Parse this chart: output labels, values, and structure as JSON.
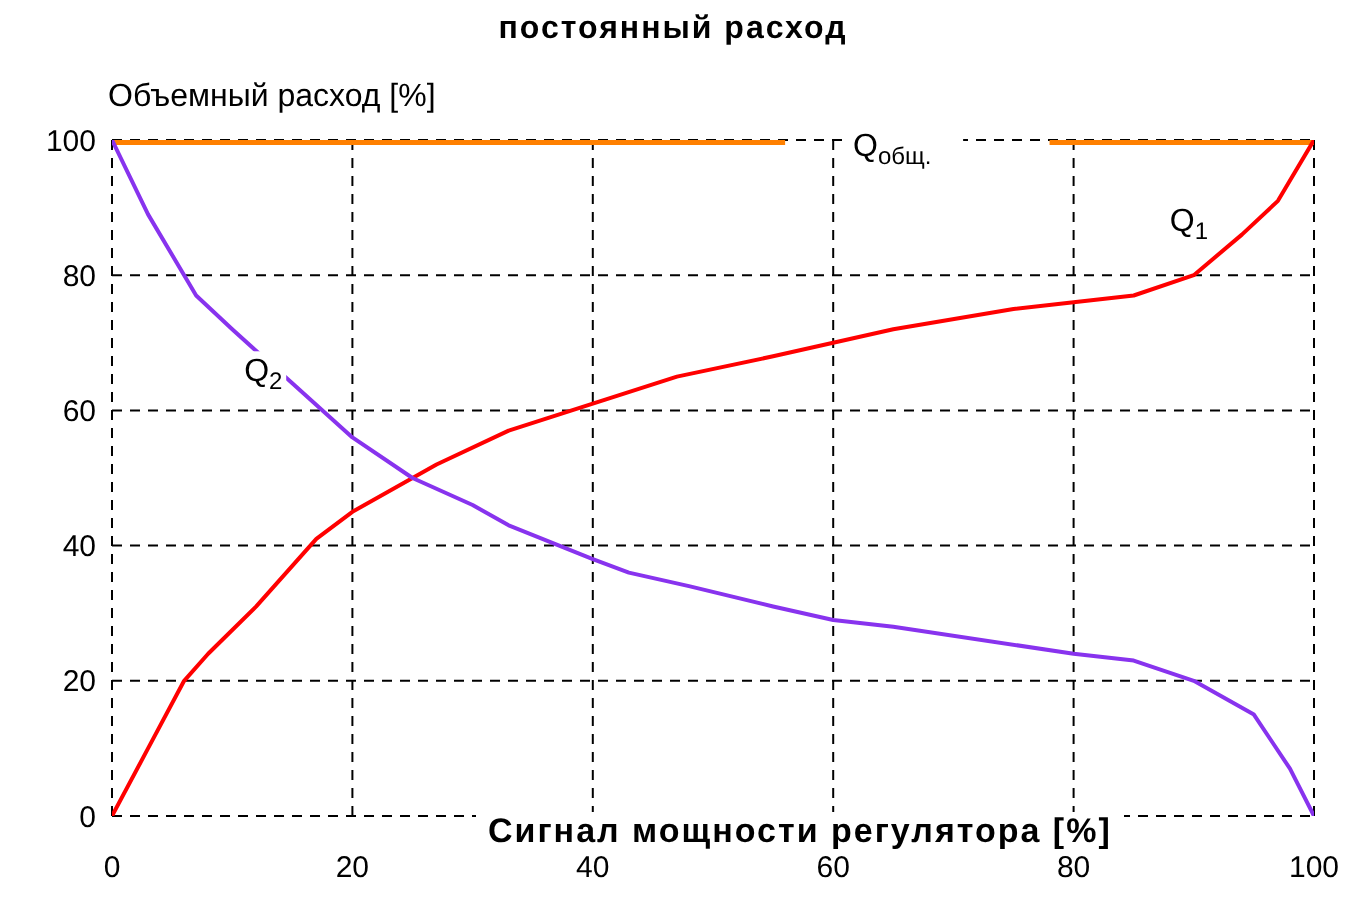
{
  "chart_data": {
    "type": "line",
    "title": "постоянный расход",
    "ylabel": "Объемный расход [%]",
    "xlabel": "Сигнал мощности регулятора [%]",
    "xlim": [
      0,
      100
    ],
    "ylim": [
      0,
      100
    ],
    "xticks": [
      0,
      20,
      40,
      60,
      80,
      100
    ],
    "yticks": [
      0,
      20,
      40,
      60,
      80,
      100
    ],
    "grid": true,
    "legend": false,
    "marker": "none",
    "line_style": "solid",
    "series": [
      {
        "name": "Q$_{общ.}$",
        "color": "#ff8000",
        "x": [
          0,
          56,
          67,
          78,
          100
        ],
        "values": [
          100,
          100,
          null,
          100,
          100
        ]
      },
      {
        "name": "Q$_{1}$",
        "color": "#ff0000",
        "x": [
          0,
          3,
          6,
          8,
          12,
          17,
          20,
          27,
          33,
          40,
          47,
          55,
          60,
          65,
          75,
          80,
          85,
          90,
          94,
          97,
          100
        ],
        "values": [
          0,
          10,
          20,
          24,
          31,
          41,
          45,
          52,
          57,
          61,
          65,
          68,
          70,
          72,
          75,
          76,
          77,
          80,
          86,
          91,
          100
        ]
      },
      {
        "name": "Q$_{2}$",
        "color": "#8833ee",
        "x": [
          0,
          3,
          7,
          10,
          15,
          20,
          25,
          30,
          33,
          40,
          43,
          48,
          55,
          60,
          65,
          80,
          85,
          90,
          93,
          95,
          98,
          100
        ],
        "values": [
          100,
          89,
          77,
          72,
          64,
          56,
          50,
          46,
          43,
          38,
          36,
          34,
          31,
          29,
          28,
          24,
          23,
          20,
          17,
          15,
          7,
          0
        ]
      }
    ]
  }
}
